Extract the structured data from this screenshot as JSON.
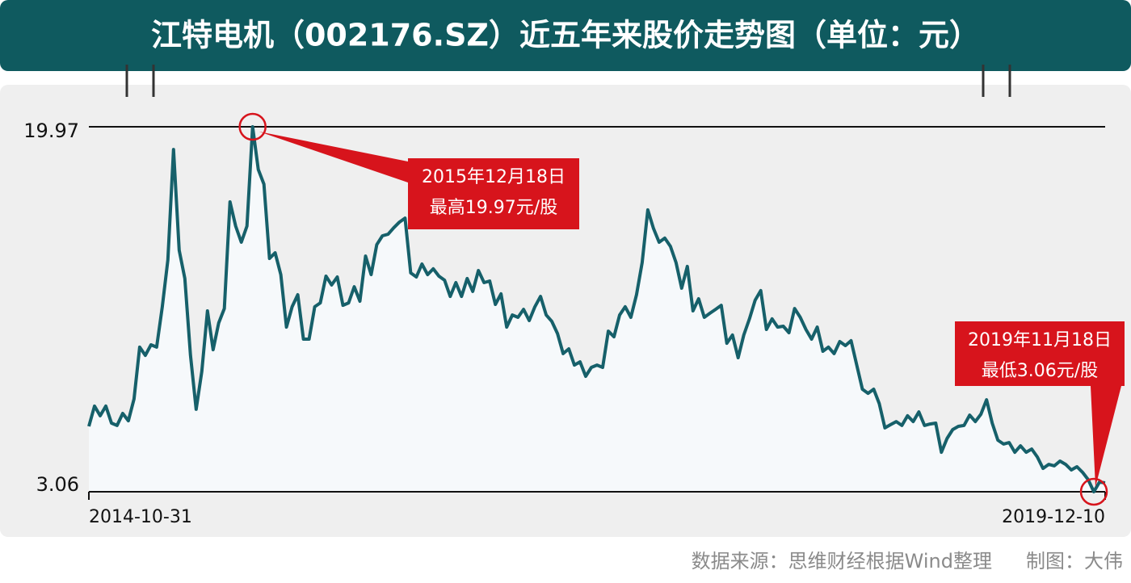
{
  "chart_data": {
    "type": "line",
    "title": "江特电机（002176.SZ）近五年来股价走势图（单位：元）",
    "categories": [
      "2014-10-31",
      null,
      null,
      null,
      null,
      null,
      null,
      null,
      null,
      null,
      null,
      null,
      null,
      null,
      null,
      null,
      null,
      null,
      null,
      null,
      null,
      null,
      null,
      null,
      null,
      null,
      null,
      null,
      null,
      null,
      null,
      null,
      null,
      null,
      null,
      null,
      null,
      null,
      null,
      null,
      null,
      null,
      null,
      null,
      null,
      null,
      null,
      null,
      null,
      null,
      null,
      null,
      null,
      null,
      null,
      null,
      null,
      null,
      null,
      null,
      null,
      null,
      null,
      null,
      null,
      null,
      null,
      null,
      null,
      null,
      null,
      null,
      null,
      null,
      null,
      null,
      null,
      null,
      null,
      null,
      null,
      null,
      null,
      null,
      null,
      null,
      null,
      null,
      null,
      null,
      null,
      null,
      null,
      null,
      null,
      null,
      null,
      null,
      null,
      null,
      null,
      null,
      null,
      null,
      null,
      null,
      null,
      null,
      null,
      null,
      null,
      null,
      null,
      null,
      null,
      null,
      null,
      null,
      null,
      null,
      null,
      null,
      null,
      null,
      null,
      null,
      null,
      null,
      null,
      null,
      null,
      null,
      null,
      null,
      null,
      null,
      null,
      null,
      null,
      null,
      null,
      null,
      null,
      null,
      null,
      null,
      null,
      null,
      null,
      null,
      null,
      null,
      null,
      null,
      null,
      null,
      null,
      null,
      null,
      null,
      null,
      null,
      null,
      null,
      null,
      null,
      null,
      null,
      null,
      null,
      null,
      null,
      null,
      null,
      null,
      null,
      null,
      null,
      null,
      null,
      "2019-12-10"
    ],
    "values": [
      6.09,
      7.03,
      6.58,
      7.03,
      6.24,
      6.13,
      6.69,
      6.35,
      7.36,
      9.76,
      9.38,
      9.87,
      9.76,
      11.63,
      13.8,
      18.92,
      14.25,
      12.94,
      9.38,
      6.88,
      8.63,
      11.44,
      9.64,
      10.88,
      11.55,
      16.49,
      15.37,
      14.62,
      15.37,
      19.97,
      17.99,
      17.31,
      13.87,
      14.13,
      13.12,
      10.69,
      11.63,
      12.19,
      10.13,
      10.13,
      11.63,
      11.81,
      13.05,
      12.64,
      13.01,
      11.7,
      11.81,
      12.56,
      11.89,
      13.98,
      13.12,
      14.51,
      14.92,
      14.99,
      15.29,
      15.55,
      15.74,
      13.2,
      13.01,
      13.61,
      13.12,
      13.39,
      13.05,
      12.86,
      12.11,
      12.75,
      12.11,
      12.94,
      12.34,
      13.31,
      12.75,
      12.82,
      11.74,
      12.23,
      10.69,
      11.25,
      11.14,
      11.51,
      10.99,
      11.63,
      12.11,
      11.25,
      10.95,
      10.39,
      9.46,
      9.68,
      8.93,
      9.08,
      8.41,
      8.82,
      8.93,
      8.82,
      10.5,
      10.24,
      11.25,
      11.63,
      11.14,
      12.19,
      13.68,
      16.12,
      15.26,
      14.62,
      14.81,
      14.43,
      13.68,
      12.49,
      13.5,
      11.44,
      12.0,
      11.14,
      11.33,
      11.51,
      11.7,
      9.94,
      10.32,
      9.27,
      10.32,
      11.07,
      11.93,
      12.38,
      10.58,
      11.07,
      10.69,
      10.73,
      10.43,
      11.55,
      11.14,
      10.58,
      10.13,
      10.69,
      9.57,
      9.76,
      9.46,
      10.02,
      9.83,
      10.06,
      8.93,
      7.81,
      7.62,
      7.81,
      7.14,
      6.02,
      6.17,
      6.31,
      6.13,
      6.58,
      6.31,
      6.76,
      6.13,
      6.2,
      6.24,
      4.89,
      5.53,
      5.94,
      6.09,
      6.13,
      6.61,
      6.31,
      6.65,
      7.32,
      6.24,
      5.45,
      5.27,
      5.34,
      4.89,
      5.19,
      4.89,
      5.04,
      4.67,
      4.14,
      4.33,
      4.26,
      4.48,
      4.33,
      4.07,
      4.22,
      3.96,
      3.62,
      3.06,
      3.51,
      3.47
    ],
    "color": "#16606a",
    "ylim": [
      3.06,
      19.97
    ],
    "yticks": [
      3.06,
      19.97
    ],
    "annotations": [
      {
        "index": 29,
        "lines": [
          "2015年12月18日",
          "最高19.97元/股"
        ]
      },
      {
        "index": 178,
        "lines": [
          "2019年11月18日",
          "最低3.06元/股"
        ]
      }
    ],
    "source": "数据来源：思维财经根据Wind整理",
    "credit": "制图：大伟"
  }
}
